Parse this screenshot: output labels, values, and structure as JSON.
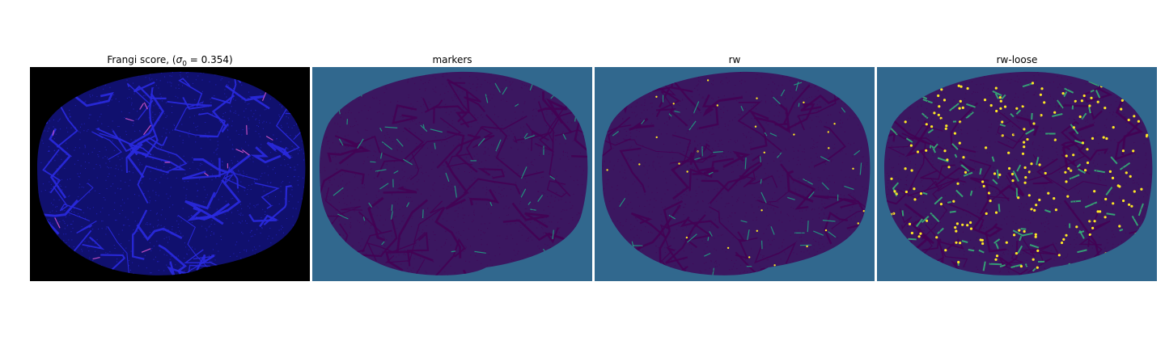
{
  "panels": [
    {
      "title_prefix": "Frangi score, (",
      "sigma_symbol": "σ",
      "sigma_sub": "0",
      "sigma_value": " = 0.354)",
      "background": "#000000",
      "blob_color": "#10106e",
      "vessel_color": "#2a2ae0",
      "highlight_color": "#e05ad0"
    },
    {
      "title": "markers",
      "background": "#31688e",
      "blob_color": "#3b1760",
      "vessel_color": "#440154",
      "highlight_color": "#21a585"
    },
    {
      "title": "rw",
      "background": "#31688e",
      "blob_color": "#3b1760",
      "vessel_color": "#440154",
      "highlight_color": "#21a585",
      "accent_color": "#fde725"
    },
    {
      "title": "rw-loose",
      "background": "#31688e",
      "blob_color": "#3b1760",
      "vessel_color": "#440154",
      "highlight_color": "#35b779",
      "accent_color": "#fde725"
    }
  ]
}
